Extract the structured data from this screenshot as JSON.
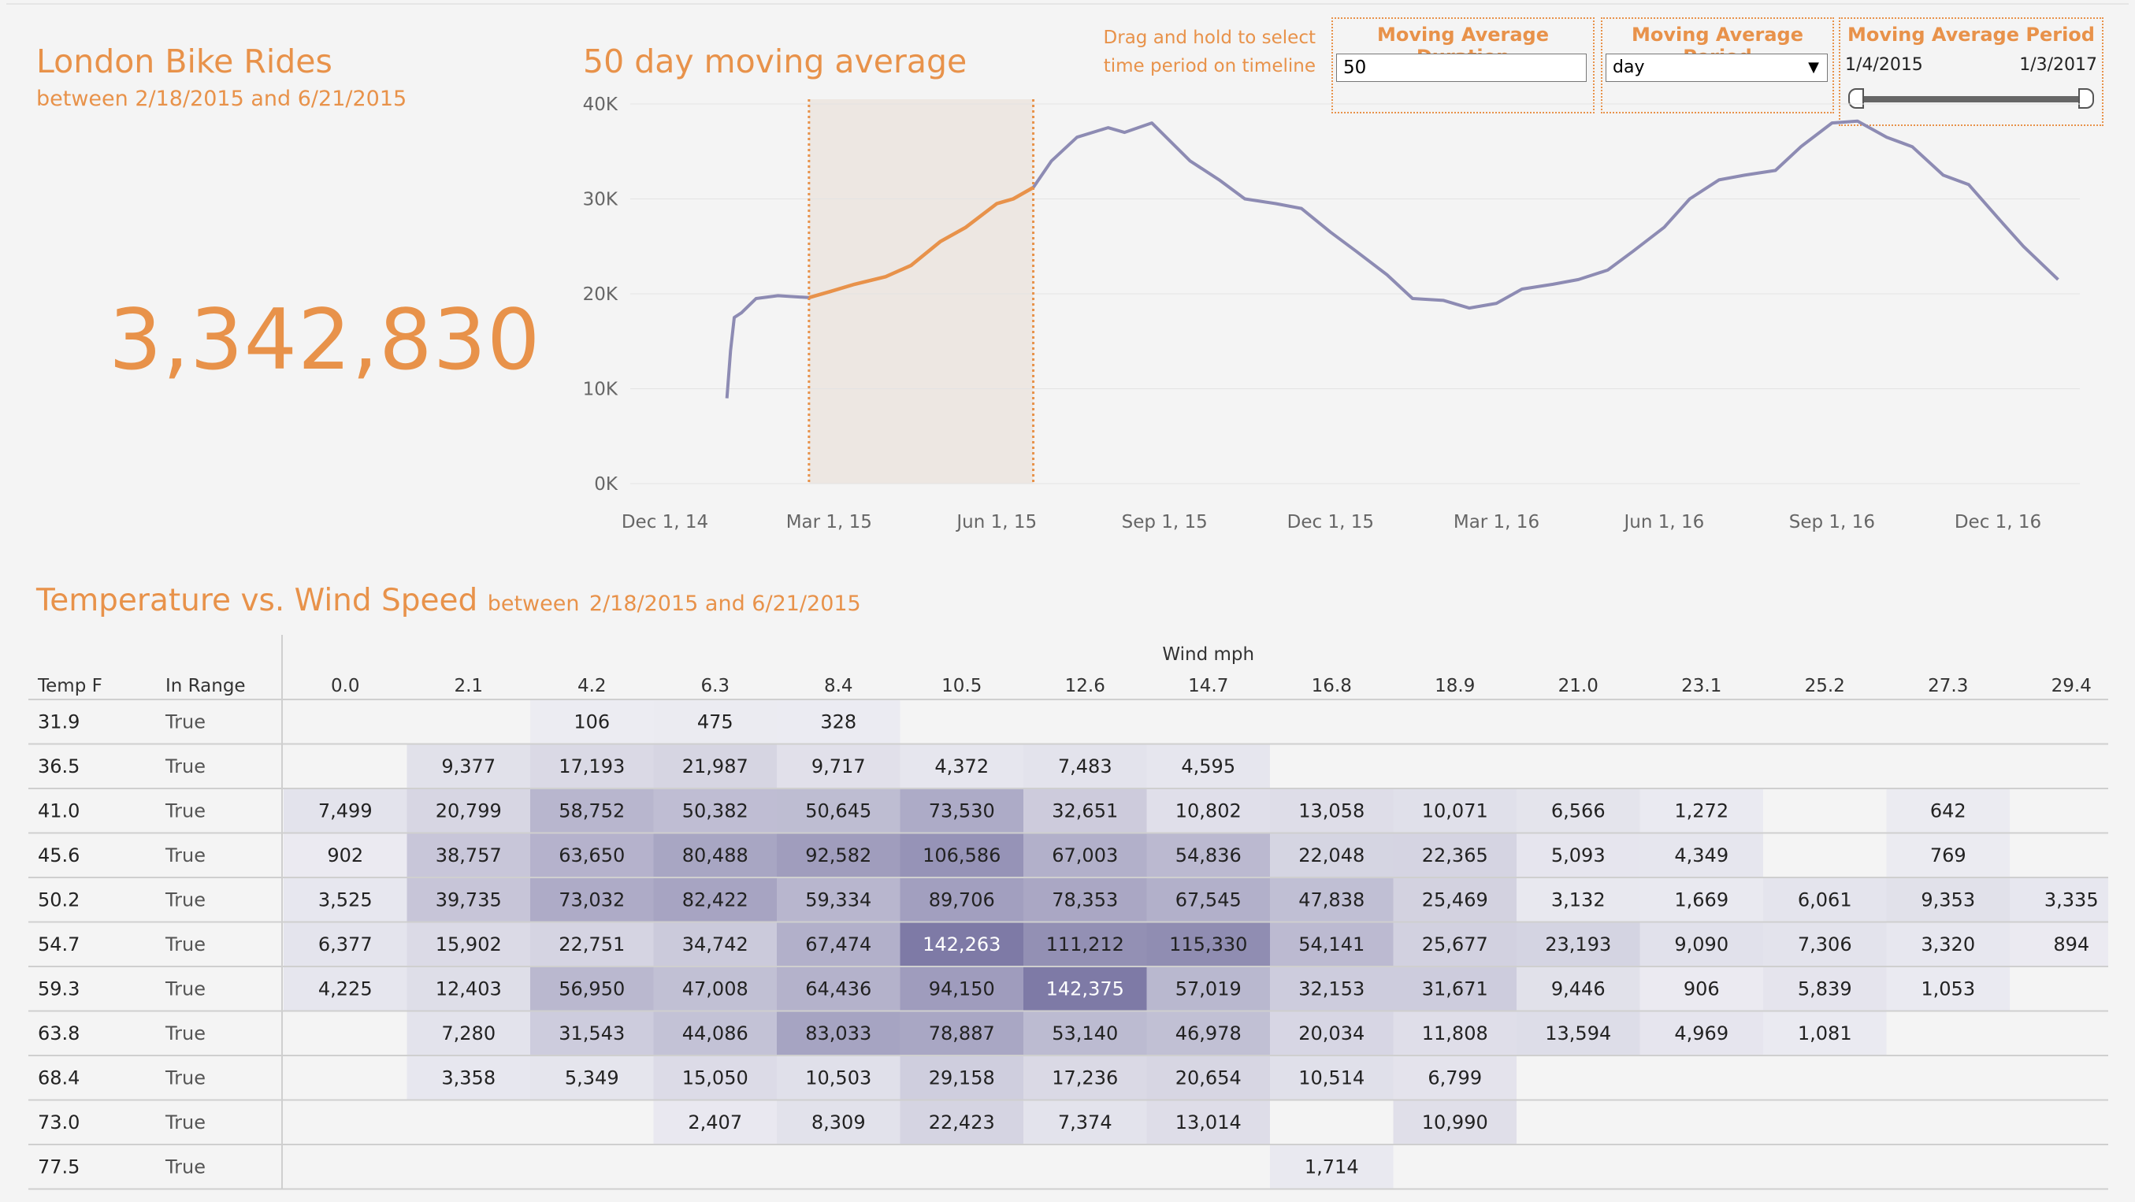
{
  "kpi": {
    "title": "London Bike Rides",
    "subtitle": "between 2/18/2015 and 6/21/2015",
    "value": "3,342,830"
  },
  "drag_hint": {
    "line1": "Drag and hold to select",
    "line2": "time period on timeline"
  },
  "params": {
    "duration": {
      "title": "Moving Average Duration",
      "value": "50"
    },
    "period": {
      "title": "Moving Average Period",
      "value": "day"
    },
    "range": {
      "title": "Moving Average Period",
      "start": "1/4/2015",
      "end": "1/3/2017"
    }
  },
  "colors": {
    "accent": "#e8924a",
    "line": "#8d8bb3",
    "highlight_band": "#ede7e2",
    "heat_high": "#7e7aa6"
  },
  "chart_data": [
    {
      "type": "line",
      "title": "50 day moving average",
      "x_ticks": [
        "Dec 1, 14",
        "Mar 1, 15",
        "Jun 1, 15",
        "Sep 1, 15",
        "Dec 1, 15",
        "Mar 1, 16",
        "Jun 1, 16",
        "Sep 1, 16",
        "Dec 1, 16"
      ],
      "y_ticks": [
        "0K",
        "10K",
        "20K",
        "30K",
        "40K"
      ],
      "ylim": [
        0,
        40000
      ],
      "selection": {
        "start": "2015-02-18",
        "end": "2015-06-21"
      },
      "series": [
        {
          "x": [
            "2015-01-04",
            "2015-01-06",
            "2015-01-08",
            "2015-01-12",
            "2015-01-20",
            "2015-02-01",
            "2015-02-18",
            "2015-03-01",
            "2015-03-15",
            "2015-04-01",
            "2015-04-15",
            "2015-05-01",
            "2015-05-15",
            "2015-06-01",
            "2015-06-10",
            "2015-06-21",
            "2015-07-01",
            "2015-07-15",
            "2015-08-01",
            "2015-08-10",
            "2015-08-25",
            "2015-09-15",
            "2015-10-01",
            "2015-10-15",
            "2015-11-01",
            "2015-11-15",
            "2015-12-01",
            "2015-12-15",
            "2016-01-01",
            "2016-01-15",
            "2016-02-01",
            "2016-02-15",
            "2016-03-01",
            "2016-03-15",
            "2016-04-01",
            "2016-04-15",
            "2016-05-01",
            "2016-05-15",
            "2016-06-01",
            "2016-06-15",
            "2016-07-01",
            "2016-07-15",
            "2016-08-01",
            "2016-08-15",
            "2016-09-01",
            "2016-09-15",
            "2016-10-01",
            "2016-10-15",
            "2016-11-01",
            "2016-11-15",
            "2016-12-01",
            "2016-12-15",
            "2017-01-03"
          ],
          "values": [
            9000,
            14000,
            17500,
            18000,
            19500,
            19800,
            19600,
            20200,
            21000,
            21800,
            23000,
            25500,
            27000,
            29500,
            30000,
            31200,
            34000,
            36500,
            37500,
            37000,
            38000,
            34000,
            32000,
            30000,
            29500,
            29000,
            26500,
            24500,
            22000,
            19500,
            19300,
            18500,
            19000,
            20500,
            21000,
            21500,
            22500,
            24500,
            27000,
            30000,
            32000,
            32500,
            33000,
            35500,
            38000,
            38200,
            36500,
            35500,
            32500,
            31500,
            28000,
            25000,
            21500
          ]
        }
      ]
    },
    {
      "type": "heatmap",
      "title": "Temperature vs. Wind Speed",
      "subtitle_prefix": "between",
      "subtitle_range": "2/18/2015 and 6/21/2015",
      "x_title": "Wind mph",
      "row_headers": [
        "Temp F",
        "In Range"
      ],
      "columns": [
        "0.0",
        "2.1",
        "4.2",
        "6.3",
        "8.4",
        "10.5",
        "12.6",
        "14.7",
        "16.8",
        "18.9",
        "21.0",
        "23.1",
        "25.2",
        "27.3",
        "29.4"
      ],
      "rows": [
        {
          "temp": "31.9",
          "in_range": "True",
          "cells": [
            "",
            "",
            "106",
            "475",
            "328",
            "",
            "",
            "",
            "",
            "",
            "",
            "",
            "",
            "",
            ""
          ],
          "values": [
            null,
            null,
            106,
            475,
            328,
            null,
            null,
            null,
            null,
            null,
            null,
            null,
            null,
            null,
            null
          ]
        },
        {
          "temp": "36.5",
          "in_range": "True",
          "cells": [
            "",
            "9,377",
            "17,193",
            "21,987",
            "9,717",
            "4,372",
            "7,483",
            "4,595",
            "",
            "",
            "",
            "",
            "",
            "",
            ""
          ],
          "values": [
            null,
            9377,
            17193,
            21987,
            9717,
            4372,
            7483,
            4595,
            null,
            null,
            null,
            null,
            null,
            null,
            null
          ]
        },
        {
          "temp": "41.0",
          "in_range": "True",
          "cells": [
            "7,499",
            "20,799",
            "58,752",
            "50,382",
            "50,645",
            "73,530",
            "32,651",
            "10,802",
            "13,058",
            "10,071",
            "6,566",
            "1,272",
            "",
            "642",
            ""
          ],
          "values": [
            7499,
            20799,
            58752,
            50382,
            50645,
            73530,
            32651,
            10802,
            13058,
            10071,
            6566,
            1272,
            null,
            642,
            null
          ]
        },
        {
          "temp": "45.6",
          "in_range": "True",
          "cells": [
            "902",
            "38,757",
            "63,650",
            "80,488",
            "92,582",
            "106,586",
            "67,003",
            "54,836",
            "22,048",
            "22,365",
            "5,093",
            "4,349",
            "",
            "769",
            ""
          ],
          "values": [
            902,
            38757,
            63650,
            80488,
            92582,
            106586,
            67003,
            54836,
            22048,
            22365,
            5093,
            4349,
            null,
            769,
            null
          ]
        },
        {
          "temp": "50.2",
          "in_range": "True",
          "cells": [
            "3,525",
            "39,735",
            "73,032",
            "82,422",
            "59,334",
            "89,706",
            "78,353",
            "67,545",
            "47,838",
            "25,469",
            "3,132",
            "1,669",
            "6,061",
            "9,353",
            "3,335"
          ],
          "values": [
            3525,
            39735,
            73032,
            82422,
            59334,
            89706,
            78353,
            67545,
            47838,
            25469,
            3132,
            1669,
            6061,
            9353,
            3335
          ]
        },
        {
          "temp": "54.7",
          "in_range": "True",
          "cells": [
            "6,377",
            "15,902",
            "22,751",
            "34,742",
            "67,474",
            "142,263",
            "111,212",
            "115,330",
            "54,141",
            "25,677",
            "23,193",
            "9,090",
            "7,306",
            "3,320",
            "894"
          ],
          "values": [
            6377,
            15902,
            22751,
            34742,
            67474,
            142263,
            111212,
            115330,
            54141,
            25677,
            23193,
            9090,
            7306,
            3320,
            894
          ]
        },
        {
          "temp": "59.3",
          "in_range": "True",
          "cells": [
            "4,225",
            "12,403",
            "56,950",
            "47,008",
            "64,436",
            "94,150",
            "142,375",
            "57,019",
            "32,153",
            "31,671",
            "9,446",
            "906",
            "5,839",
            "1,053",
            ""
          ],
          "values": [
            4225,
            12403,
            56950,
            47008,
            64436,
            94150,
            142375,
            57019,
            32153,
            31671,
            9446,
            906,
            5839,
            1053,
            null
          ]
        },
        {
          "temp": "63.8",
          "in_range": "True",
          "cells": [
            "",
            "7,280",
            "31,543",
            "44,086",
            "83,033",
            "78,887",
            "53,140",
            "46,978",
            "20,034",
            "11,808",
            "13,594",
            "4,969",
            "1,081",
            "",
            ""
          ],
          "values": [
            null,
            7280,
            31543,
            44086,
            83033,
            78887,
            53140,
            46978,
            20034,
            11808,
            13594,
            4969,
            1081,
            null,
            null
          ]
        },
        {
          "temp": "68.4",
          "in_range": "True",
          "cells": [
            "",
            "3,358",
            "5,349",
            "15,050",
            "10,503",
            "29,158",
            "17,236",
            "20,654",
            "10,514",
            "6,799",
            "",
            "",
            "",
            "",
            ""
          ],
          "values": [
            null,
            3358,
            5349,
            15050,
            10503,
            29158,
            17236,
            20654,
            10514,
            6799,
            null,
            null,
            null,
            null,
            null
          ]
        },
        {
          "temp": "73.0",
          "in_range": "True",
          "cells": [
            "",
            "",
            "",
            "2,407",
            "8,309",
            "22,423",
            "7,374",
            "13,014",
            "",
            "10,990",
            "",
            "",
            "",
            "",
            ""
          ],
          "values": [
            null,
            null,
            null,
            2407,
            8309,
            22423,
            7374,
            13014,
            null,
            10990,
            null,
            null,
            null,
            null,
            null
          ]
        },
        {
          "temp": "77.5",
          "in_range": "True",
          "cells": [
            "",
            "",
            "",
            "",
            "",
            "",
            "",
            "",
            "1,714",
            "",
            "",
            "",
            "",
            "",
            ""
          ],
          "values": [
            null,
            null,
            null,
            null,
            null,
            null,
            null,
            null,
            1714,
            null,
            null,
            null,
            null,
            null,
            null
          ]
        }
      ],
      "max_value": 142375
    }
  ]
}
